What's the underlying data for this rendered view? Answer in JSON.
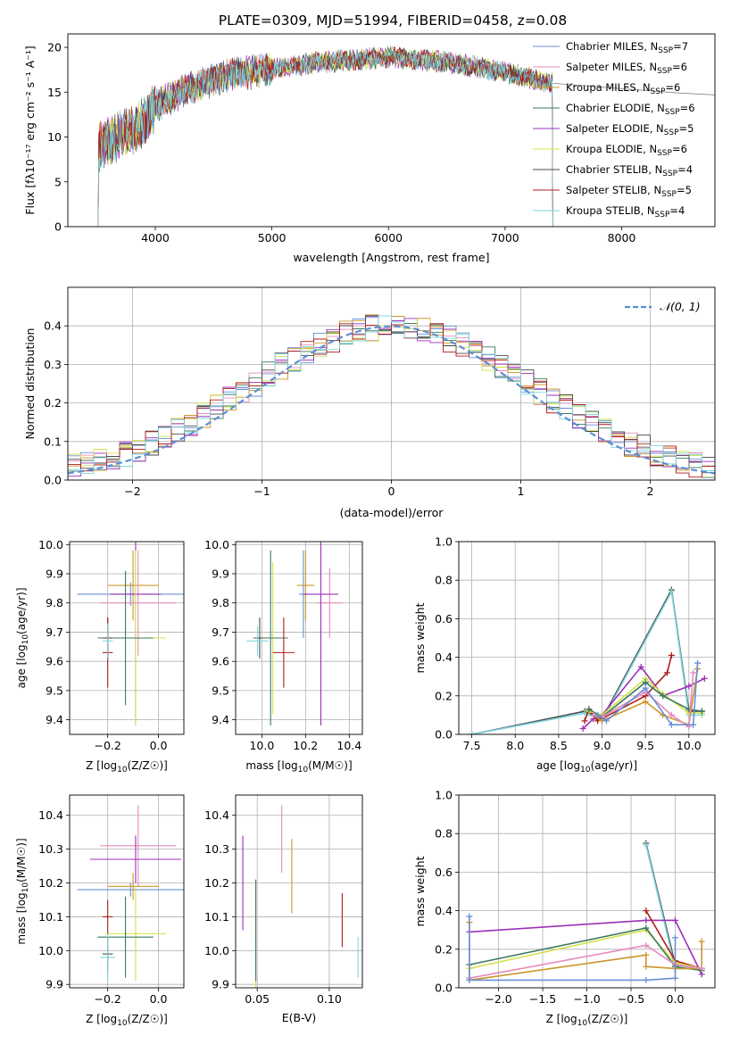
{
  "figure": {
    "title": "PLATE=0309, MJD=51994, FIBERID=0458, z=0.08"
  },
  "chart_data": [
    {
      "id": "spectrum",
      "type": "line",
      "xlabel": "wavelength [Angstrom, rest frame]",
      "ylabel": "Flux [fλ10⁻¹⁷ erg cm⁻² s⁻¹ A⁻¹]",
      "xlim": [
        3250,
        8800
      ],
      "ylim": [
        0,
        21.5
      ],
      "xticks": [
        4000,
        5000,
        6000,
        7000,
        8000
      ],
      "yticks": [
        0,
        5,
        10,
        15,
        20
      ],
      "legend_position": "upper-right",
      "x_start": 3510,
      "x_end": 7410,
      "trend": {
        "x": [
          3510,
          3700,
          3900,
          4000,
          4300,
          4600,
          5000,
          5400,
          6000,
          6500,
          7000,
          7410
        ],
        "y": [
          8.8,
          10.2,
          11.5,
          13.5,
          15.5,
          16.8,
          17.6,
          18.3,
          18.9,
          18.4,
          17.2,
          16.0
        ]
      },
      "continuation": {
        "x": [
          7410,
          7800,
          8200,
          8500,
          8800
        ],
        "y": [
          16.0,
          15.6,
          15.2,
          14.9,
          14.7
        ]
      },
      "series": [
        {
          "name": "Chabrier MILES, N_SSP=7",
          "label_main": "Chabrier MILES, N",
          "label_sub": "SSP",
          "label_tail": "=7",
          "color": "#6a8fd6"
        },
        {
          "name": "Salpeter MILES, N_SSP=6",
          "label_main": "Salpeter MILES, N",
          "label_sub": "SSP",
          "label_tail": "=6",
          "color": "#e58bbf"
        },
        {
          "name": "Kroupa MILES, N_SSP=6",
          "label_main": "Kroupa MILES, N",
          "label_sub": "SSP",
          "label_tail": "=6",
          "color": "#c9972b"
        },
        {
          "name": "Chabrier ELODIE, N_SSP=6",
          "label_main": "Chabrier ELODIE, N",
          "label_sub": "SSP",
          "label_tail": "=6",
          "color": "#3d7a5e"
        },
        {
          "name": "Salpeter ELODIE, N_SSP=5",
          "label_main": "Salpeter ELODIE, N",
          "label_sub": "SSP",
          "label_tail": "=5",
          "color": "#9b30b8"
        },
        {
          "name": "Kroupa ELODIE, N_SSP=6",
          "label_main": "Kroupa ELODIE, N",
          "label_sub": "SSP",
          "label_tail": "=6",
          "color": "#d4e04a"
        },
        {
          "name": "Chabrier STELIB, N_SSP=4",
          "label_main": "Chabrier STELIB, N",
          "label_sub": "SSP",
          "label_tail": "=4",
          "color": "#4a4a4a"
        },
        {
          "name": "Salpeter STELIB, N_SSP=5",
          "label_main": "Salpeter STELIB, N",
          "label_sub": "SSP",
          "label_tail": "=5",
          "color": "#b01c1c"
        },
        {
          "name": "Kroupa STELIB, N_SSP=4",
          "label_main": "Kroupa STELIB, N",
          "label_sub": "SSP",
          "label_tail": "=4",
          "color": "#7fd6de"
        }
      ]
    },
    {
      "id": "residuals",
      "type": "histogram",
      "xlabel": "(data-model)/error",
      "ylabel": "Normed distribution",
      "xlim": [
        -2.5,
        2.5
      ],
      "ylim": [
        0,
        0.5
      ],
      "xticks": [
        -2,
        -1,
        0,
        1,
        2
      ],
      "xticklabels": [
        "−2",
        "−1",
        "0",
        "1",
        "2"
      ],
      "yticks": [
        0,
        0.1,
        0.2,
        0.3,
        0.4
      ],
      "yticklabels": [
        "0.0",
        "0.1",
        "0.2",
        "0.3",
        "0.4"
      ],
      "grid": true,
      "legend_position": "upper-right",
      "reference_curve": {
        "name": "N(0,1)",
        "label": "𝒩(0, 1)",
        "color": "#5b8fd4",
        "sigma": 1.0
      },
      "bin_width": 0.1,
      "bin_start": -2.5,
      "histogram_colors": [
        "#6a8fd6",
        "#e58bbf",
        "#c9972b",
        "#3d7a5e",
        "#9b30b8",
        "#d4e04a",
        "#4a4a4a",
        "#b01c1c",
        "#7fd6de"
      ]
    },
    {
      "id": "age-vs-Z",
      "type": "scatter",
      "xlabel_main": "Z [log",
      "xlabel_sub": "10",
      "xlabel_tail": "(Z/Z☉)]",
      "ylabel_main": "age  [log",
      "ylabel_sub": "10",
      "ylabel_tail": "(age/yr)]",
      "xlim": [
        -0.35,
        0.1
      ],
      "ylim": [
        9.35,
        10.01
      ],
      "xticks": [
        -0.2,
        0.0
      ],
      "xticklabels": [
        "−0.2",
        "0.0"
      ],
      "yticks": [
        9.4,
        9.5,
        9.6,
        9.7,
        9.8,
        9.9,
        10.0
      ],
      "yticklabels": [
        "9.4",
        "9.5",
        "9.6",
        "9.7",
        "9.8",
        "9.9",
        "10.0"
      ],
      "points": [
        {
          "x": -0.11,
          "y": 9.83,
          "xerr": 0.21,
          "yerr": 0.04,
          "color": "#6a8fd6"
        },
        {
          "x": -0.1,
          "y": 9.86,
          "xerr": 0.1,
          "yerr": 0.12,
          "color": "#c9972b"
        },
        {
          "x": -0.08,
          "y": 9.8,
          "xerr": 0.15,
          "yerr": 0.18,
          "color": "#e58bbf"
        },
        {
          "x": -0.09,
          "y": 9.83,
          "xerr": 0.1,
          "yerr": 0.45,
          "color": "#9b30b8"
        },
        {
          "x": -0.09,
          "y": 9.68,
          "xerr": 0.12,
          "yerr": 0.3,
          "color": "#d4e04a"
        },
        {
          "x": -0.13,
          "y": 9.68,
          "xerr": 0.11,
          "yerr": 0.23,
          "color": "#3d7a5e"
        },
        {
          "x": -0.2,
          "y": 9.68,
          "xerr": 0.02,
          "yerr": 0.07,
          "color": "#4a4a4a"
        },
        {
          "x": -0.2,
          "y": 9.63,
          "xerr": 0.02,
          "yerr": 0.12,
          "color": "#b01c1c"
        },
        {
          "x": -0.2,
          "y": 9.67,
          "xerr": 0.02,
          "yerr": 0.06,
          "color": "#7fd6de"
        }
      ]
    },
    {
      "id": "age-vs-mass",
      "type": "scatter",
      "xlabel_main": "mass [log",
      "xlabel_sub": "10",
      "xlabel_tail": "(M/M☉)]",
      "xlim": [
        9.88,
        10.46
      ],
      "ylim": [
        9.35,
        10.01
      ],
      "xticks": [
        10.0,
        10.2,
        10.4
      ],
      "xticklabels": [
        "10.0",
        "10.2",
        "10.4"
      ],
      "yticks": [
        9.4,
        9.5,
        9.6,
        9.7,
        9.8,
        9.9,
        10.0
      ],
      "yticklabels": [
        "9.4",
        "9.5",
        "9.6",
        "9.7",
        "9.8",
        "9.9",
        "10.0"
      ],
      "points": [
        {
          "x": 10.19,
          "y": 9.83,
          "xerr": 0.02,
          "yerr": 0.15,
          "color": "#6a8fd6"
        },
        {
          "x": 10.2,
          "y": 9.86,
          "xerr": 0.04,
          "yerr": 0.12,
          "color": "#c9972b"
        },
        {
          "x": 10.31,
          "y": 9.8,
          "xerr": 0.06,
          "yerr": 0.12,
          "color": "#e58bbf"
        },
        {
          "x": 10.27,
          "y": 9.83,
          "xerr": 0.08,
          "yerr": 0.45,
          "color": "#9b30b8"
        },
        {
          "x": 10.05,
          "y": 9.68,
          "xerr": 0.01,
          "yerr": 0.26,
          "color": "#d4e04a"
        },
        {
          "x": 10.04,
          "y": 9.68,
          "xerr": 0.08,
          "yerr": 0.3,
          "color": "#3d7a5e"
        },
        {
          "x": 9.99,
          "y": 9.68,
          "xerr": 0.01,
          "yerr": 0.07,
          "color": "#4a4a4a"
        },
        {
          "x": 10.1,
          "y": 9.63,
          "xerr": 0.05,
          "yerr": 0.12,
          "color": "#b01c1c"
        },
        {
          "x": 9.98,
          "y": 9.67,
          "xerr": 0.05,
          "yerr": 0.05,
          "color": "#7fd6de"
        }
      ]
    },
    {
      "id": "weight-vs-age",
      "type": "line",
      "xlabel_main": "age  [log",
      "xlabel_sub": "10",
      "xlabel_tail": "(age/yr)]",
      "ylabel": "mass weight",
      "xlim": [
        7.35,
        10.3
      ],
      "ylim": [
        0,
        1
      ],
      "xticks": [
        7.5,
        8.0,
        8.5,
        9.0,
        9.5,
        10.0
      ],
      "xticklabels": [
        "7.5",
        "8.0",
        "8.5",
        "9.0",
        "9.5",
        "10.0"
      ],
      "yticks": [
        0,
        0.2,
        0.4,
        0.6,
        0.8,
        1.0
      ],
      "yticklabels": [
        "0.0",
        "0.2",
        "0.4",
        "0.6",
        "0.8",
        "1.0"
      ],
      "grid": true,
      "series": [
        {
          "color": "#4a4a4a",
          "x": [
            7.5,
            8.8,
            9.0,
            9.8,
            10.0,
            10.15
          ],
          "y": [
            0.0,
            0.12,
            0.08,
            0.75,
            0.12,
            0.12
          ]
        },
        {
          "color": "#7fd6de",
          "x": [
            7.5,
            8.8,
            9.0,
            9.8,
            10.0,
            10.15
          ],
          "y": [
            0.0,
            0.11,
            0.07,
            0.74,
            0.1,
            0.1
          ]
        },
        {
          "color": "#9b30b8",
          "x": [
            8.78,
            8.9,
            9.0,
            9.45,
            9.7,
            10.0,
            10.18
          ],
          "y": [
            0.03,
            0.08,
            0.1,
            0.35,
            0.2,
            0.25,
            0.29
          ]
        },
        {
          "color": "#b01c1c",
          "x": [
            8.8,
            8.85,
            8.95,
            9.5,
            9.75,
            9.8
          ],
          "y": [
            0.07,
            0.13,
            0.07,
            0.2,
            0.32,
            0.41
          ]
        },
        {
          "color": "#d4e04a",
          "x": [
            8.85,
            9.0,
            9.5,
            9.7,
            10.0,
            10.15
          ],
          "y": [
            0.12,
            0.1,
            0.29,
            0.21,
            0.11,
            0.11
          ]
        },
        {
          "color": "#3d7a5e",
          "x": [
            8.85,
            9.0,
            9.5,
            9.7,
            10.0,
            10.15
          ],
          "y": [
            0.13,
            0.09,
            0.27,
            0.2,
            0.13,
            0.12
          ]
        },
        {
          "color": "#c9972b",
          "x": [
            8.9,
            9.0,
            9.5,
            9.7,
            10.0,
            10.1
          ],
          "y": [
            0.1,
            0.07,
            0.17,
            0.1,
            0.05,
            0.34
          ]
        },
        {
          "color": "#e58bbf",
          "x": [
            8.9,
            9.0,
            9.5,
            9.8,
            10.0,
            10.05
          ],
          "y": [
            0.1,
            0.09,
            0.22,
            0.1,
            0.04,
            0.32
          ]
        },
        {
          "color": "#6a8fd6",
          "x": [
            8.95,
            9.05,
            9.5,
            9.8,
            10.05,
            10.1
          ],
          "y": [
            0.1,
            0.07,
            0.24,
            0.05,
            0.05,
            0.37
          ]
        }
      ]
    },
    {
      "id": "mass-vs-Z",
      "type": "scatter",
      "xlabel_main": "Z [log",
      "xlabel_sub": "10",
      "xlabel_tail": "(Z/Z☉)]",
      "ylabel_main": "mass [log",
      "ylabel_sub": "10",
      "ylabel_tail": "(M/M☉)]",
      "xlim": [
        -0.35,
        0.1
      ],
      "ylim": [
        9.89,
        10.46
      ],
      "xticks": [
        -0.2,
        0.0
      ],
      "xticklabels": [
        "−0.2",
        "0.0"
      ],
      "yticks": [
        9.9,
        10.0,
        10.1,
        10.2,
        10.3,
        10.4
      ],
      "yticklabels": [
        "9.9",
        "10.0",
        "10.1",
        "10.2",
        "10.3",
        "10.4"
      ],
      "points": [
        {
          "x": -0.11,
          "y": 10.18,
          "xerr": 0.21,
          "yerr": 0.02,
          "color": "#6a8fd6"
        },
        {
          "x": -0.1,
          "y": 10.19,
          "xerr": 0.1,
          "yerr": 0.04,
          "color": "#c9972b"
        },
        {
          "x": -0.08,
          "y": 10.31,
          "xerr": 0.15,
          "yerr": 0.12,
          "color": "#e58bbf"
        },
        {
          "x": -0.09,
          "y": 10.27,
          "xerr": 0.18,
          "yerr": 0.07,
          "color": "#9b30b8"
        },
        {
          "x": -0.09,
          "y": 10.05,
          "xerr": 0.12,
          "yerr": 0.14,
          "color": "#d4e04a"
        },
        {
          "x": -0.13,
          "y": 10.04,
          "xerr": 0.11,
          "yerr": 0.12,
          "color": "#3d7a5e"
        },
        {
          "x": -0.2,
          "y": 9.99,
          "xerr": 0.02,
          "yerr": 0.05,
          "color": "#4a4a4a"
        },
        {
          "x": -0.2,
          "y": 10.1,
          "xerr": 0.02,
          "yerr": 0.05,
          "color": "#b01c1c"
        },
        {
          "x": -0.2,
          "y": 9.98,
          "xerr": 0.03,
          "yerr": 0.07,
          "color": "#7fd6de"
        }
      ]
    },
    {
      "id": "mass-vs-ebv",
      "type": "scatter",
      "xlabel": "E(B-V)",
      "xlim": [
        0.035,
        0.123
      ],
      "ylim": [
        9.89,
        10.46
      ],
      "xticks": [
        0.05,
        0.1
      ],
      "xticklabels": [
        "0.05",
        "0.10"
      ],
      "yticks": [
        9.9,
        10.0,
        10.1,
        10.2,
        10.3,
        10.4
      ],
      "yticklabels": [
        "9.9",
        "10.0",
        "10.1",
        "10.2",
        "10.3",
        "10.4"
      ],
      "points": [
        {
          "x": 0.04,
          "y": 10.2,
          "yerr": 0.14,
          "color": "#9b30b8"
        },
        {
          "x": 0.049,
          "y": 10.05,
          "yerr": 0.16,
          "color": "#d4e04a"
        },
        {
          "x": 0.049,
          "y": 10.06,
          "yerr": 0.15,
          "color": "#3d7a5e"
        },
        {
          "x": 0.067,
          "y": 10.33,
          "yerr": 0.1,
          "color": "#e58bbf"
        },
        {
          "x": 0.074,
          "y": 10.22,
          "yerr": 0.11,
          "color": "#c9972b"
        },
        {
          "x": 0.109,
          "y": 10.09,
          "yerr": 0.08,
          "color": "#b01c1c"
        },
        {
          "x": 0.12,
          "y": 9.98,
          "yerr": 0.06,
          "color": "#7fd6de"
        }
      ]
    },
    {
      "id": "weight-vs-Z",
      "type": "line",
      "xlabel_main": "Z [log",
      "xlabel_sub": "10",
      "xlabel_tail": "(Z/Z☉)]",
      "ylabel": "mass weight",
      "xlim": [
        -2.45,
        0.45
      ],
      "ylim": [
        0,
        1
      ],
      "xticks": [
        -2.0,
        -1.5,
        -1.0,
        -0.5,
        0.0
      ],
      "xticklabels": [
        "−2.0",
        "−1.5",
        "−1.0",
        "−0.5",
        "0.0"
      ],
      "yticks": [
        0,
        0.2,
        0.4,
        0.6,
        0.8,
        1.0
      ],
      "yticklabels": [
        "0.0",
        "0.2",
        "0.4",
        "0.6",
        "0.8",
        "1.0"
      ],
      "grid": true,
      "series": [
        {
          "color": "#4a4a4a",
          "x": [
            -0.33,
            0.0,
            0.3
          ],
          "y": [
            0.75,
            0.12,
            0.1
          ]
        },
        {
          "color": "#7fd6de",
          "x": [
            -0.33,
            0.0,
            0.3
          ],
          "y": [
            0.74,
            0.1,
            0.1
          ]
        },
        {
          "color": "#9b30b8",
          "x": [
            -2.33,
            -0.33,
            0.0,
            0.3
          ],
          "y": [
            0.29,
            0.35,
            0.35,
            0.07
          ]
        },
        {
          "color": "#b01c1c",
          "x": [
            -0.33,
            0.0,
            0.3
          ],
          "y": [
            0.4,
            0.14,
            0.1
          ]
        },
        {
          "color": "#d4e04a",
          "x": [
            -2.33,
            -0.33,
            0.0,
            0.3
          ],
          "y": [
            0.1,
            0.3,
            0.13,
            0.1
          ]
        },
        {
          "color": "#3d7a5e",
          "x": [
            -2.33,
            -0.33,
            0.0,
            0.3
          ],
          "y": [
            0.12,
            0.31,
            0.11,
            0.09
          ]
        },
        {
          "color": "#c9972b",
          "x": [
            -2.33,
            -2.33,
            -0.33,
            -0.33,
            0.0,
            0.3,
            0.3
          ],
          "y": [
            0.34,
            0.04,
            0.17,
            0.11,
            0.1,
            0.1,
            0.24
          ]
        },
        {
          "color": "#e58bbf",
          "x": [
            -2.33,
            -0.33,
            0.0,
            0.3
          ],
          "y": [
            0.05,
            0.22,
            0.12,
            0.1
          ]
        },
        {
          "color": "#6a8fd6",
          "x": [
            -2.33,
            -2.33,
            -0.33,
            0.0,
            0.0
          ],
          "y": [
            0.37,
            0.04,
            0.04,
            0.05,
            0.26
          ]
        }
      ]
    }
  ]
}
